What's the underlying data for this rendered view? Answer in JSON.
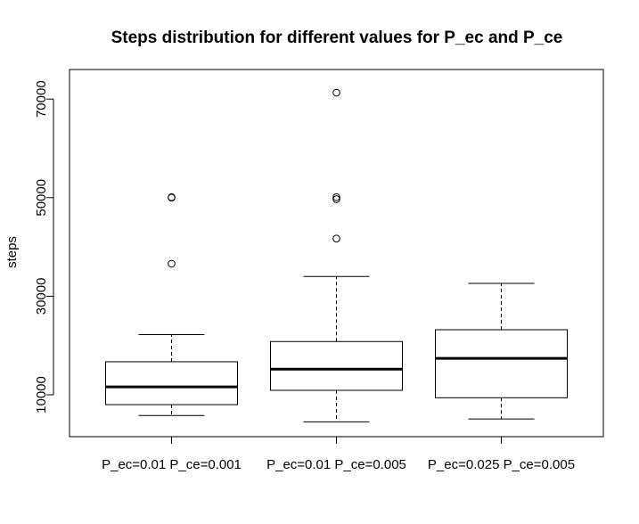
{
  "chart_data": {
    "type": "boxplot",
    "title": "Steps distribution for different values for P_ec and P_ce",
    "xlabel": "",
    "ylabel": "steps",
    "ylim": [
      1500,
      76000
    ],
    "y_ticks": [
      10000,
      30000,
      50000,
      70000
    ],
    "y_tick_labels": [
      "10000",
      "30000",
      "50000",
      "70000"
    ],
    "categories": [
      "P_ec=0.01 P_ce=0.001",
      "P_ec=0.01 P_ce=0.005",
      "P_ec=0.025 P_ce=0.005"
    ],
    "boxes": [
      {
        "whisker_low": 5800,
        "q1": 8000,
        "median": 11600,
        "q3": 16700,
        "whisker_high": 22200,
        "outliers": [
          36600,
          50000,
          50100
        ]
      },
      {
        "whisker_low": 4500,
        "q1": 10900,
        "median": 15200,
        "q3": 20800,
        "whisker_high": 34000,
        "outliers": [
          41700,
          49700,
          50100,
          71300
        ]
      },
      {
        "whisker_low": 5100,
        "q1": 9400,
        "median": 17400,
        "q3": 23200,
        "whisker_high": 32600,
        "outliers": []
      }
    ],
    "grid": false,
    "legend": "none"
  }
}
